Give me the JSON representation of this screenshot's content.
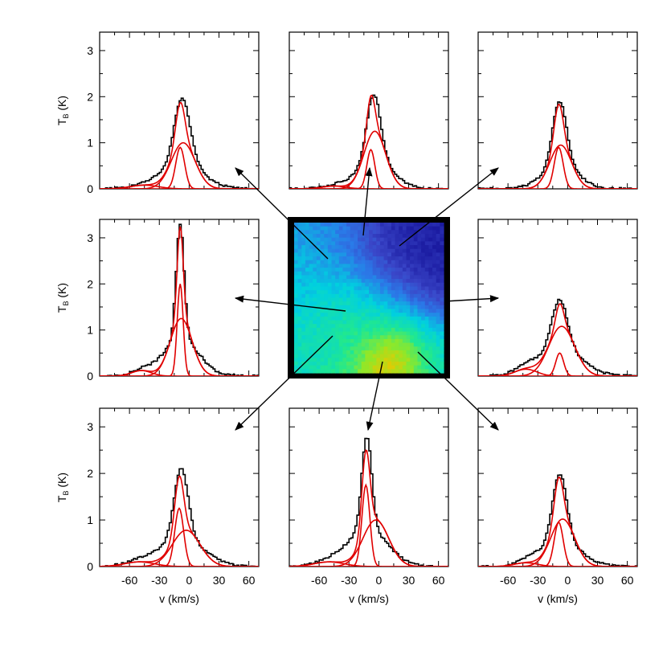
{
  "figure": {
    "xlabel": "v (km/s)",
    "ylabel_main": "T",
    "ylabel_sub": "B",
    "ylabel_unit": " (K)",
    "yticks": [
      "0",
      "1",
      "2",
      "3"
    ],
    "xticks": [
      "-60",
      "-30",
      "0",
      "30",
      "60"
    ]
  },
  "chart_data": [
    {
      "type": "line",
      "position": "top-left",
      "xlim": [
        -90,
        70
      ],
      "ylim": [
        0,
        3.4
      ],
      "xlabel": "",
      "ylabel": "T_B (K)",
      "observed": {
        "peak": 1.95,
        "center": -7,
        "width": 8,
        "wing_peak": 0.55,
        "wing_width": 20
      },
      "components": [
        {
          "amp": 1.0,
          "center": -6,
          "sigma": 12
        },
        {
          "amp": 0.9,
          "center": -9,
          "sigma": 4.5
        },
        {
          "amp": 0.08,
          "center": -45,
          "sigma": 14
        }
      ]
    },
    {
      "type": "line",
      "position": "top-center",
      "xlim": [
        -90,
        70
      ],
      "ylim": [
        0,
        3.4
      ],
      "xlabel": "",
      "ylabel": "",
      "observed": {
        "peak": 2.05,
        "center": -5,
        "width": 7,
        "wing_peak": 0.6,
        "wing_width": 18
      },
      "components": [
        {
          "amp": 1.25,
          "center": -4,
          "sigma": 11
        },
        {
          "amp": 0.85,
          "center": -8,
          "sigma": 4
        },
        {
          "amp": 0.06,
          "center": -45,
          "sigma": 12
        }
      ]
    },
    {
      "type": "line",
      "position": "top-right",
      "xlim": [
        -90,
        70
      ],
      "ylim": [
        0,
        3.4
      ],
      "xlabel": "",
      "ylabel": "",
      "observed": {
        "peak": 1.9,
        "center": -8,
        "width": 7,
        "wing_peak": 0.5,
        "wing_width": 18
      },
      "components": [
        {
          "amp": 0.95,
          "center": -7,
          "sigma": 11
        },
        {
          "amp": 0.9,
          "center": -9,
          "sigma": 4.5
        }
      ]
    },
    {
      "type": "line",
      "position": "middle-left",
      "xlim": [
        -90,
        70
      ],
      "ylim": [
        0,
        3.4
      ],
      "xlabel": "",
      "ylabel": "T_B (K)",
      "observed": {
        "peak": 3.3,
        "center": -9,
        "width": 4,
        "wing_peak": 0.8,
        "wing_width": 18
      },
      "components": [
        {
          "amp": 1.25,
          "center": -8,
          "sigma": 11
        },
        {
          "amp": 2.0,
          "center": -9,
          "sigma": 3
        },
        {
          "amp": 0.12,
          "center": -48,
          "sigma": 10
        }
      ]
    },
    {
      "type": "line",
      "position": "middle-right",
      "xlim": [
        -90,
        70
      ],
      "ylim": [
        0,
        3.4
      ],
      "xlabel": "",
      "ylabel": "",
      "observed": {
        "peak": 1.65,
        "center": -8,
        "width": 8,
        "wing_peak": 0.55,
        "wing_width": 22
      },
      "components": [
        {
          "amp": 1.08,
          "center": -6,
          "sigma": 13
        },
        {
          "amp": 0.5,
          "center": -8,
          "sigma": 4
        },
        {
          "amp": 0.15,
          "center": -42,
          "sigma": 11
        }
      ]
    },
    {
      "type": "line",
      "position": "bottom-left",
      "xlim": [
        -90,
        70
      ],
      "ylim": [
        0,
        3.4
      ],
      "xlabel": "v (km/s)",
      "ylabel": "T_B (K)",
      "observed": {
        "peak": 2.1,
        "center": -8,
        "width": 7,
        "wing_peak": 0.6,
        "wing_width": 22
      },
      "components": [
        {
          "amp": 0.78,
          "center": -3,
          "sigma": 14
        },
        {
          "amp": 1.25,
          "center": -10,
          "sigma": 4.5
        },
        {
          "amp": 0.1,
          "center": -50,
          "sigma": 15
        }
      ]
    },
    {
      "type": "line",
      "position": "bottom-center",
      "xlim": [
        -90,
        70
      ],
      "ylim": [
        0,
        3.4
      ],
      "xlabel": "v (km/s)",
      "ylabel": "",
      "observed": {
        "peak": 2.8,
        "center": -12,
        "width": 5,
        "wing_peak": 0.8,
        "wing_width": 20
      },
      "components": [
        {
          "amp": 1.0,
          "center": -3,
          "sigma": 13
        },
        {
          "amp": 1.75,
          "center": -13,
          "sigma": 4
        },
        {
          "amp": 0.1,
          "center": -50,
          "sigma": 15
        }
      ]
    },
    {
      "type": "line",
      "position": "bottom-right",
      "xlim": [
        -90,
        70
      ],
      "ylim": [
        0,
        3.4
      ],
      "xlabel": "v (km/s)",
      "ylabel": "",
      "observed": {
        "peak": 2.0,
        "center": -8,
        "width": 7,
        "wing_peak": 0.55,
        "wing_width": 20
      },
      "components": [
        {
          "amp": 1.02,
          "center": -5,
          "sigma": 12
        },
        {
          "amp": 0.95,
          "center": -9,
          "sigma": 4.5
        },
        {
          "amp": 0.08,
          "center": -42,
          "sigma": 12
        }
      ]
    },
    {
      "type": "heatmap",
      "position": "center",
      "colormap": [
        "#1a1aa0",
        "#3a46c8",
        "#2a7ae8",
        "#00d0e0",
        "#20e890",
        "#8ee82a",
        "#e8c800",
        "#f07000",
        "#e01010"
      ],
      "frame_color": "#000000",
      "hotspots": [
        {
          "u": 0.2,
          "v": 0.2,
          "value": 0.32,
          "r": 0.22
        },
        {
          "u": 0.75,
          "v": 0.28,
          "value": 0.02,
          "r": 0.3
        },
        {
          "u": 0.35,
          "v": 0.6,
          "value": 0.48,
          "r": 0.2
        },
        {
          "u": 0.12,
          "v": 0.75,
          "value": 0.42,
          "r": 0.15
        },
        {
          "u": 0.66,
          "v": 0.9,
          "value": 0.97,
          "r": 0.12
        },
        {
          "u": 0.55,
          "v": 0.75,
          "value": 0.58,
          "r": 0.22
        },
        {
          "u": 0.85,
          "v": 0.85,
          "value": 0.45,
          "r": 0.16
        },
        {
          "u": 0.05,
          "v": 0.45,
          "value": 0.36,
          "r": 0.14
        }
      ]
    }
  ]
}
